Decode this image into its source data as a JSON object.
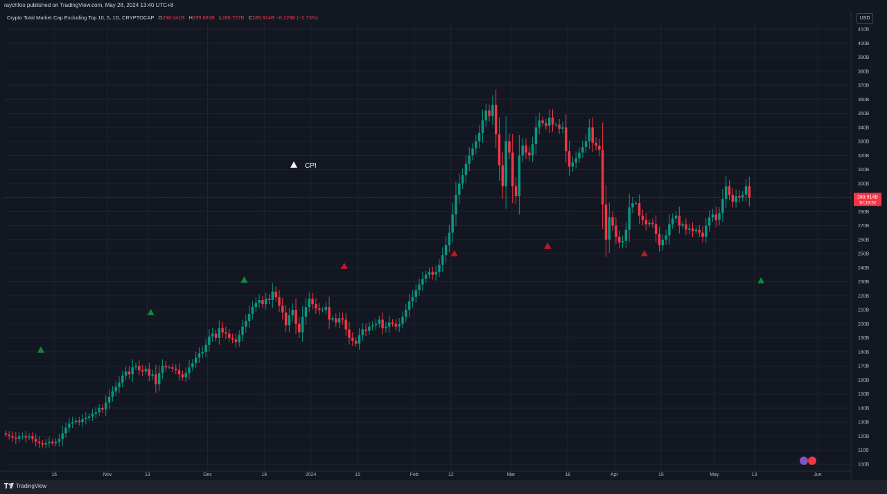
{
  "header": {
    "published": "raychfoo published on TradingView.com, May 28, 2024 13:40 UTC+8",
    "symbol": "Crypto Total Market Cap Excluding Top 10, 5, 1D, CRYPTOCAP",
    "ohlc": [
      {
        "label": "O",
        "value": "298.041B"
      },
      {
        "label": "H",
        "value": "299.681B"
      },
      {
        "label": "L",
        "value": "286.727B"
      },
      {
        "label": "C",
        "value": "289.914B"
      }
    ],
    "change": "−8.129B (−2.73%)"
  },
  "currency": "USD",
  "branding": "TradingView",
  "colors": {
    "background": "#131722",
    "up": "#089981",
    "down": "#f23645",
    "grid": "#1f2330",
    "axis_text": "#b2b5be",
    "marker_green": "#0f8a3a",
    "marker_red": "#c2191f",
    "cpi_marker": "#ffffff"
  },
  "chart_data": {
    "type": "candlestick",
    "title": "Crypto Total Market Cap Excluding Top 10",
    "interval": "1D",
    "y_unit": "B",
    "ylim": [
      96,
      416
    ],
    "y_ticks": [
      "100B",
      "110B",
      "120B",
      "130B",
      "140B",
      "150B",
      "160B",
      "170B",
      "180B",
      "190B",
      "200B",
      "210B",
      "220B",
      "230B",
      "240B",
      "250B",
      "260B",
      "270B",
      "280B",
      "290B",
      "300B",
      "310B",
      "320B",
      "330B",
      "340B",
      "350B",
      "360B",
      "370B",
      "380B",
      "390B",
      "400B",
      "410B"
    ],
    "x_ticks": [
      {
        "label": "16",
        "date": "2023-10-16"
      },
      {
        "label": "Nov",
        "date": "2023-11-01"
      },
      {
        "label": "13",
        "date": "2023-11-13"
      },
      {
        "label": "Dec",
        "date": "2023-12-01"
      },
      {
        "label": "18",
        "date": "2023-12-18"
      },
      {
        "label": "2024",
        "date": "2024-01-01"
      },
      {
        "label": "15",
        "date": "2024-01-15"
      },
      {
        "label": "Feb",
        "date": "2024-02-01"
      },
      {
        "label": "12",
        "date": "2024-02-12"
      },
      {
        "label": "Mar",
        "date": "2024-03-01"
      },
      {
        "label": "18",
        "date": "2024-03-18"
      },
      {
        "label": "Apr",
        "date": "2024-04-01"
      },
      {
        "label": "15",
        "date": "2024-04-15"
      },
      {
        "label": "May",
        "date": "2024-05-01"
      },
      {
        "label": "13",
        "date": "2024-05-13"
      },
      {
        "label": "Jun",
        "date": "2024-06-01"
      }
    ],
    "first_date": "2023-10-01",
    "last_price": {
      "value": 289.914,
      "label": "289.914B",
      "countdown": "10:19:52"
    },
    "grid": true,
    "closes": [
      121,
      120,
      119,
      118,
      120,
      120,
      119,
      120,
      118,
      116,
      115,
      114,
      115,
      116,
      115,
      116,
      118,
      122,
      126,
      129,
      130,
      131,
      130,
      132,
      133,
      134,
      136,
      137,
      140,
      139,
      144,
      148,
      152,
      155,
      158,
      163,
      166,
      164,
      169,
      170,
      167,
      166,
      168,
      163,
      164,
      157,
      165,
      170,
      169,
      169,
      168,
      167,
      164,
      162,
      165,
      169,
      172,
      176,
      179,
      180,
      185,
      191,
      193,
      190,
      197,
      194,
      193,
      190,
      189,
      187,
      192,
      198,
      202,
      207,
      212,
      215,
      217,
      214,
      218,
      217,
      223,
      219,
      213,
      208,
      199,
      206,
      210,
      200,
      194,
      205,
      212,
      218,
      214,
      211,
      210,
      210,
      212,
      203,
      204,
      201,
      204,
      203,
      196,
      190,
      188,
      186,
      192,
      196,
      195,
      198,
      199,
      200,
      203,
      197,
      198,
      201,
      200,
      198,
      200,
      205,
      210,
      216,
      219,
      224,
      228,
      232,
      235,
      237,
      235,
      237,
      242,
      249,
      256,
      265,
      278,
      292,
      300,
      306,
      314,
      320,
      325,
      330,
      336,
      345,
      352,
      348,
      356,
      335,
      313,
      298,
      330,
      322,
      298,
      291,
      320,
      327,
      322,
      320,
      328,
      340,
      345,
      343,
      341,
      347,
      342,
      342,
      339,
      340,
      323,
      312,
      315,
      318,
      322,
      326,
      330,
      340,
      329,
      327,
      324,
      285,
      260,
      276,
      270,
      262,
      258,
      259,
      267,
      283,
      286,
      286,
      277,
      274,
      271,
      272,
      271,
      264,
      256,
      260,
      263,
      271,
      275,
      277,
      270,
      271,
      267,
      268,
      266,
      267,
      265,
      262,
      270,
      276,
      278,
      274,
      279,
      289,
      298,
      292,
      287,
      291,
      290,
      292,
      298,
      289.914
    ],
    "markers": [
      {
        "label": "CPI",
        "date": "2023-10-12",
        "direction": "up",
        "color": "green"
      },
      {
        "label": "CPI",
        "date": "2023-11-14",
        "direction": "up",
        "color": "green"
      },
      {
        "label": "CPI",
        "date": "2023-12-12",
        "direction": "up",
        "color": "green"
      },
      {
        "label": "CPI",
        "date": "2024-01-11",
        "direction": "up",
        "color": "red"
      },
      {
        "label": "CPI",
        "date": "2024-02-13",
        "direction": "up",
        "color": "red"
      },
      {
        "label": "CPI",
        "date": "2024-03-12",
        "direction": "up",
        "color": "red"
      },
      {
        "label": "CPI",
        "date": "2024-04-10",
        "direction": "up",
        "color": "red"
      },
      {
        "label": "CPI",
        "date": "2024-05-15",
        "direction": "up",
        "color": "green"
      }
    ],
    "annotation": {
      "label": "CPI",
      "date": "2023-12-28",
      "value": 312
    }
  }
}
